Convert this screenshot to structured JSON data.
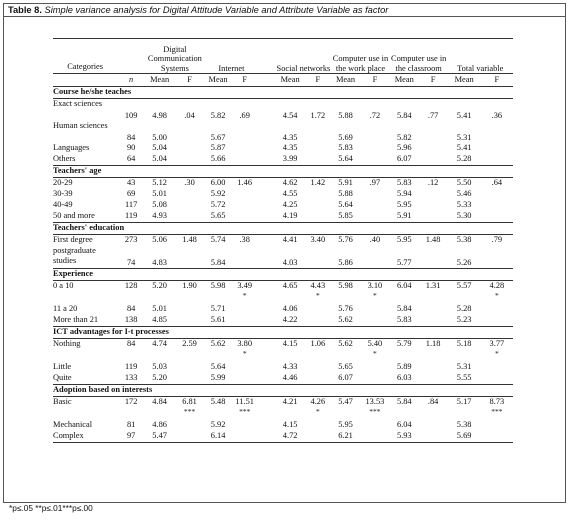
{
  "caption": {
    "label": "Table 8.",
    "title": "Simple variance analysis for Digital Attitude Variable and Attribute Variable as factor"
  },
  "headers": {
    "categories": "Categories",
    "groups": [
      "Digital Communication Systems",
      "Internet",
      "Social networks",
      "Computer use in the work place",
      "Computer use in the classroom",
      "Total variable"
    ],
    "n": "n",
    "mean": "Mean",
    "f": "F"
  },
  "sections": [
    {
      "title": "Course he/she teaches",
      "rows": [
        {
          "label": "Exact sciences",
          "cells": [
            "109",
            "4.98",
            ".04",
            "5.82",
            ".69",
            "",
            "4.54",
            "1.72",
            "5.88",
            ".72",
            "5.84",
            ".77",
            "5.41",
            ".36"
          ]
        },
        {
          "label": "Human sciences",
          "cells": [
            "84",
            "5.00",
            "",
            "5.67",
            "",
            "",
            "4.35",
            "",
            "5.69",
            "",
            "5.82",
            "",
            "5.31",
            ""
          ]
        },
        {
          "label": "Languages",
          "cells": [
            "90",
            "5.04",
            "",
            "5.87",
            "",
            "",
            "4.35",
            "",
            "5.83",
            "",
            "5.96",
            "",
            "5.41",
            ""
          ]
        },
        {
          "label": "Others",
          "cells": [
            "64",
            "5.04",
            "",
            "5.66",
            "",
            "",
            "3.99",
            "",
            "5.64",
            "",
            "6.07",
            "",
            "5.28",
            ""
          ]
        }
      ]
    },
    {
      "title": "Teachers' age",
      "rows": [
        {
          "label": "20-29",
          "cells": [
            "43",
            "5.12",
            ".30",
            "6.00",
            "1.46",
            "",
            "4.62",
            "1.42",
            "5.91",
            ".97",
            "5.83",
            ".12",
            "5.50",
            ".64"
          ]
        },
        {
          "label": "30-39",
          "cells": [
            "69",
            "5.01",
            "",
            "5.92",
            "",
            "",
            "4.55",
            "",
            "5.88",
            "",
            "5.94",
            "",
            "5.46",
            ""
          ]
        },
        {
          "label": "40-49",
          "cells": [
            "117",
            "5.08",
            "",
            "5.72",
            "",
            "",
            "4.25",
            "",
            "5.64",
            "",
            "5.95",
            "",
            "5.33",
            ""
          ]
        },
        {
          "label": "50 and more",
          "cells": [
            "119",
            "4.93",
            "",
            "5.65",
            "",
            "",
            "4.19",
            "",
            "5.85",
            "",
            "5.91",
            "",
            "5.30",
            ""
          ]
        }
      ]
    },
    {
      "title": "Teachers' education",
      "rows": [
        {
          "label": "First degree",
          "cells": [
            "273",
            "5.06",
            "1.48",
            "5.74",
            ".38",
            "",
            "4.41",
            "3.40",
            "5.76",
            ".40",
            "5.95",
            "1.48",
            "5.38",
            ".79"
          ]
        },
        {
          "label": "postgraduate studies",
          "cells": [
            "74",
            "4.83",
            "",
            "5.84",
            "",
            "",
            "4.03",
            "",
            "5.86",
            "",
            "5.77",
            "",
            "5.26",
            ""
          ]
        }
      ]
    },
    {
      "title": "Experience",
      "rows": [
        {
          "label": "0 a 10",
          "cells": [
            "128",
            "5.20",
            "1.90",
            "5.98",
            "3.49 *",
            "",
            "4.65",
            "4.43 *",
            "5.98",
            "3.10 *",
            "6.04",
            "1.31",
            "5.57",
            "4.28 *"
          ]
        },
        {
          "label": "11 a 20",
          "cells": [
            "84",
            "5.01",
            "",
            "5.71",
            "",
            "",
            "4.06",
            "",
            "5.76",
            "",
            "5.84",
            "",
            "5.28",
            ""
          ]
        },
        {
          "label": "More than 21",
          "cells": [
            "138",
            "4.85",
            "",
            "5.61",
            "",
            "",
            "4.22",
            "",
            "5.62",
            "",
            "5.83",
            "",
            "5.23",
            ""
          ]
        }
      ]
    },
    {
      "title": "ICT advantages for I-t processes",
      "rows": [
        {
          "label": "Nothing",
          "cells": [
            "84",
            "4.74",
            "2.59",
            "5.62",
            "3.80 *",
            "",
            "4.15",
            "1.06",
            "5.62",
            "5.40 *",
            "5.79",
            "1.18",
            "5.18",
            "3.77 *"
          ]
        },
        {
          "label": "Little",
          "cells": [
            "119",
            "5.03",
            "",
            "5.64",
            "",
            "",
            "4.33",
            "",
            "5.65",
            "",
            "5.89",
            "",
            "5.31",
            ""
          ]
        },
        {
          "label": "Quite",
          "cells": [
            "133",
            "5.20",
            "",
            "5.99",
            "",
            "",
            "4.46",
            "",
            "6.07",
            "",
            "6.03",
            "",
            "5.55",
            ""
          ]
        }
      ]
    },
    {
      "title": "Adoption based on interests",
      "rows": [
        {
          "label": "Basic",
          "cells": [
            "172",
            "4.84",
            "6.81 ***",
            "5.48",
            "11.51 ***",
            "",
            "4.21",
            "4.26 *",
            "5.47",
            "13.53 ***",
            "5.84",
            ".84",
            "5.17",
            "8.73 ***"
          ]
        },
        {
          "label": "Mechanical",
          "cells": [
            "81",
            "4.86",
            "",
            "5.92",
            "",
            "",
            "4.15",
            "",
            "5.95",
            "",
            "6.04",
            "",
            "5.38",
            ""
          ]
        },
        {
          "label": "Complex",
          "cells": [
            "97",
            "5.47",
            "",
            "6.14",
            "",
            "",
            "4.72",
            "",
            "6.21",
            "",
            "5.93",
            "",
            "5.69",
            ""
          ]
        }
      ]
    }
  ],
  "footnote": "*p≤.05 **p≤.01***p≤.00"
}
